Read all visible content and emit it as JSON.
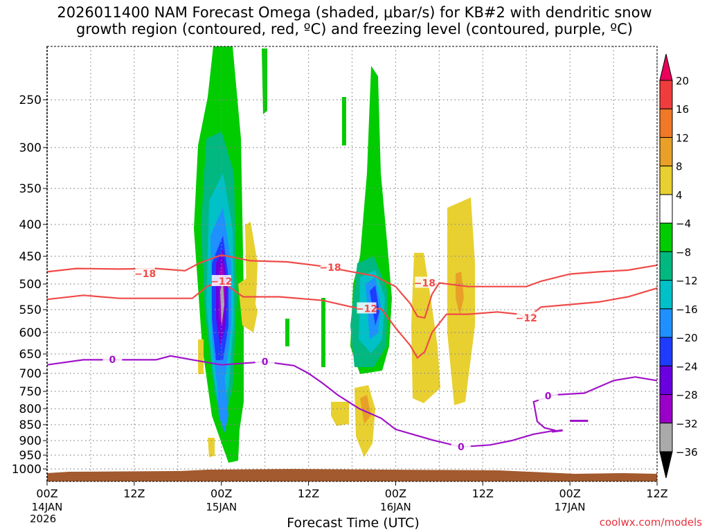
{
  "chart_data": {
    "type": "heatmap",
    "title_lines": [
      "2026011400 NAM Forecast Omega (shaded, μbar/s) for KB#2 with dendritic snow",
      "growth region (contoured, red, ºC) and freezing level (contoured, purple, ºC)"
    ],
    "xlabel": "Forecast Time (UTC)",
    "ylabel": "",
    "x_ticks": [
      {
        "h": 0,
        "label": "00Z",
        "sub": "14JAN"
      },
      {
        "h": 12,
        "label": "12Z",
        "sub": ""
      },
      {
        "h": 24,
        "label": "00Z",
        "sub": "15JAN"
      },
      {
        "h": 36,
        "label": "12Z",
        "sub": ""
      },
      {
        "h": 48,
        "label": "00Z",
        "sub": "16JAN"
      },
      {
        "h": 60,
        "label": "12Z",
        "sub": ""
      },
      {
        "h": 72,
        "label": "00Z",
        "sub": "17JAN"
      },
      {
        "h": 84,
        "label": "12Z",
        "sub": ""
      }
    ],
    "x_year": "2026",
    "xlim_hours": [
      0,
      84
    ],
    "y_ticks": [
      250,
      300,
      350,
      400,
      450,
      500,
      550,
      600,
      650,
      700,
      750,
      800,
      850,
      900,
      950,
      1000
    ],
    "ylim_hpa": [
      200,
      1025
    ],
    "grid": true,
    "colorbar": {
      "labels": [
        "20",
        "16",
        "12",
        "8",
        "4",
        "−4",
        "−8",
        "−12",
        "−16",
        "−20",
        "−24",
        "−28",
        "−32",
        "−36"
      ],
      "colors": [
        "#e8005a",
        "#f03c3c",
        "#f07828",
        "#e8a028",
        "#e8d030",
        "#ffffff",
        "#00cc00",
        "#00b880",
        "#00c0c8",
        "#1e90ff",
        "#1e3cff",
        "#6a00e0",
        "#9a00c8",
        "#aaaaaa",
        "#000000"
      ]
    },
    "series": [
      {
        "kind": "contour",
        "color": "#ef4a48",
        "labels": [
          "−18",
          "−18",
          "−18"
        ],
        "label_at": [
          [
            13.5,
            481
          ],
          [
            39,
            470
          ],
          [
            52,
            498
          ]
        ],
        "points": [
          [
            0,
            478
          ],
          [
            4,
            472
          ],
          [
            10,
            473
          ],
          [
            15,
            472
          ],
          [
            19,
            476
          ],
          [
            21,
            462
          ],
          [
            24,
            448
          ],
          [
            28,
            458
          ],
          [
            33,
            460
          ],
          [
            38,
            468
          ],
          [
            42,
            478
          ],
          [
            45,
            485
          ],
          [
            48,
            505
          ],
          [
            50,
            538
          ],
          [
            51,
            565
          ],
          [
            52,
            568
          ],
          [
            53,
            520
          ],
          [
            54,
            498
          ],
          [
            58,
            505
          ],
          [
            62,
            505
          ],
          [
            66,
            505
          ],
          [
            68,
            495
          ],
          [
            72,
            482
          ],
          [
            76,
            478
          ],
          [
            80,
            475
          ],
          [
            84,
            466
          ]
        ]
      },
      {
        "kind": "contour",
        "color": "#ef4a48",
        "labels": [
          "−12",
          "−12",
          "−12"
        ],
        "label_at": [
          [
            24,
            495
          ],
          [
            44,
            548
          ],
          [
            66,
            568
          ]
        ],
        "points": [
          [
            0,
            530
          ],
          [
            5,
            522
          ],
          [
            10,
            528
          ],
          [
            15,
            528
          ],
          [
            20,
            528
          ],
          [
            22,
            505
          ],
          [
            24,
            495
          ],
          [
            27,
            525
          ],
          [
            32,
            525
          ],
          [
            38,
            532
          ],
          [
            42,
            545
          ],
          [
            44,
            550
          ],
          [
            46,
            548
          ],
          [
            48,
            590
          ],
          [
            50,
            630
          ],
          [
            51,
            660
          ],
          [
            52,
            645
          ],
          [
            53,
            600
          ],
          [
            55,
            560
          ],
          [
            58,
            560
          ],
          [
            62,
            555
          ],
          [
            65,
            560
          ],
          [
            66,
            570
          ],
          [
            68,
            545
          ],
          [
            72,
            540
          ],
          [
            76,
            535
          ],
          [
            80,
            525
          ],
          [
            84,
            508
          ]
        ]
      },
      {
        "kind": "contour",
        "color": "#a012c8",
        "labels": [
          "0",
          "0",
          "0",
          "0"
        ],
        "label_at": [
          [
            9,
            664
          ],
          [
            30,
            670
          ],
          [
            57,
            922
          ],
          [
            69,
            763
          ]
        ],
        "points": [
          [
            0,
            678
          ],
          [
            5,
            665
          ],
          [
            10,
            665
          ],
          [
            15,
            665
          ],
          [
            17,
            655
          ],
          [
            20,
            665
          ],
          [
            24,
            678
          ],
          [
            30,
            670
          ],
          [
            34,
            680
          ],
          [
            36,
            700
          ],
          [
            38,
            728
          ],
          [
            40,
            760
          ],
          [
            43,
            800
          ],
          [
            46,
            830
          ],
          [
            48,
            865
          ],
          [
            50,
            878
          ],
          [
            53,
            898
          ],
          [
            57,
            922
          ],
          [
            61,
            915
          ],
          [
            64,
            900
          ],
          [
            67,
            880
          ],
          [
            70,
            868
          ],
          [
            68.5,
            860
          ],
          [
            67.5,
            840
          ],
          [
            67,
            780
          ],
          [
            70,
            760
          ],
          [
            74,
            755
          ],
          [
            78,
            720
          ],
          [
            81,
            710
          ],
          [
            84,
            720
          ]
        ]
      }
    ]
  },
  "credit": "coolwx.com/models"
}
